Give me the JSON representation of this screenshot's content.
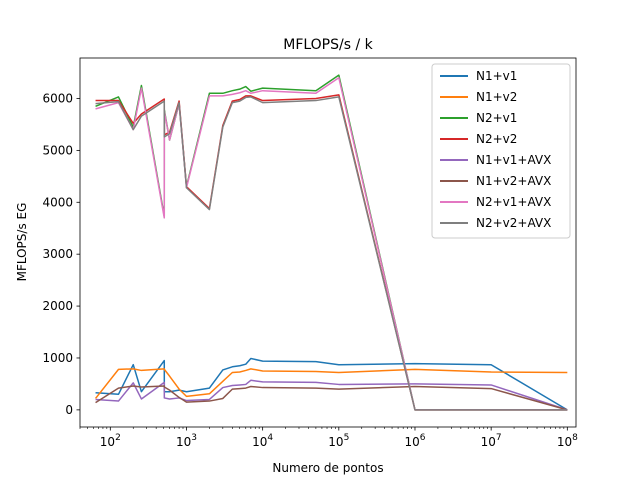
{
  "chart_data": {
    "type": "line",
    "title": "MFLOPS/s / k",
    "xlabel": "Numero de pontos",
    "ylabel": "MFLOPS/s EG",
    "xscale": "log",
    "xlim": [
      40,
      130000000
    ],
    "ylim": [
      -330,
      6780
    ],
    "xticks": [
      100,
      1000,
      10000,
      100000,
      1000000,
      10000000,
      100000000
    ],
    "xtick_labels": [
      {
        "base": "10",
        "exp": "2"
      },
      {
        "base": "10",
        "exp": "3"
      },
      {
        "base": "10",
        "exp": "4"
      },
      {
        "base": "10",
        "exp": "5"
      },
      {
        "base": "10",
        "exp": "6"
      },
      {
        "base": "10",
        "exp": "7"
      },
      {
        "base": "10",
        "exp": "8"
      }
    ],
    "yticks": [
      0,
      1000,
      2000,
      3000,
      4000,
      5000,
      6000
    ],
    "ytick_labels": [
      "0",
      "1000",
      "2000",
      "3000",
      "4000",
      "5000",
      "6000"
    ],
    "legend": "top-right",
    "grid": false,
    "x": [
      64,
      128,
      200,
      256,
      511,
      512,
      600,
      800,
      1000,
      2000,
      3000,
      4000,
      5000,
      6000,
      7000,
      10000,
      50000,
      100000,
      1000000,
      10000000,
      100000000
    ],
    "series": [
      {
        "name": "N1+v1",
        "color": "#1f77b4",
        "values": [
          330,
          300,
          870,
          350,
          950,
          350,
          350,
          380,
          350,
          420,
          770,
          830,
          850,
          880,
          990,
          940,
          930,
          870,
          890,
          870,
          0
        ]
      },
      {
        "name": "N1+v2",
        "color": "#ff7f0e",
        "values": [
          220,
          780,
          790,
          760,
          790,
          780,
          650,
          400,
          260,
          310,
          550,
          720,
          730,
          760,
          790,
          750,
          740,
          720,
          780,
          730,
          720
        ]
      },
      {
        "name": "N2+v1",
        "color": "#2ca02c",
        "values": [
          5850,
          6030,
          5450,
          6250,
          3730,
          5780,
          5200,
          5900,
          4300,
          6100,
          6100,
          6150,
          6180,
          6230,
          6140,
          6200,
          6150,
          6450,
          0,
          0,
          0
        ]
      },
      {
        "name": "N2+v2",
        "color": "#d62728",
        "values": [
          5960,
          5960,
          5520,
          5700,
          5990,
          5300,
          5350,
          5950,
          4300,
          3880,
          5480,
          5950,
          5980,
          6050,
          6050,
          5960,
          6000,
          6070,
          0,
          0,
          0
        ]
      },
      {
        "name": "N1+v1+AVX",
        "color": "#9467bd",
        "values": [
          200,
          170,
          520,
          210,
          530,
          230,
          210,
          230,
          180,
          200,
          430,
          470,
          480,
          490,
          570,
          540,
          530,
          490,
          500,
          480,
          0
        ]
      },
      {
        "name": "N1+v2+AVX",
        "color": "#8c564b",
        "values": [
          140,
          420,
          460,
          440,
          460,
          440,
          380,
          240,
          150,
          170,
          220,
          400,
          410,
          420,
          450,
          430,
          420,
          400,
          450,
          410,
          0
        ]
      },
      {
        "name": "N2+v1+AVX",
        "color": "#e377c2",
        "values": [
          5800,
          5920,
          5400,
          6200,
          3700,
          5750,
          5200,
          5900,
          4280,
          6050,
          6050,
          6080,
          6110,
          6150,
          6100,
          6150,
          6100,
          6400,
          0,
          0,
          0
        ]
      },
      {
        "name": "N2+v2+AVX",
        "color": "#7f7f7f",
        "values": [
          5900,
          5940,
          5400,
          5660,
          5950,
          5260,
          5320,
          5920,
          4280,
          3860,
          5450,
          5920,
          5950,
          6020,
          6030,
          5920,
          5960,
          6030,
          0,
          0,
          0
        ]
      }
    ]
  }
}
